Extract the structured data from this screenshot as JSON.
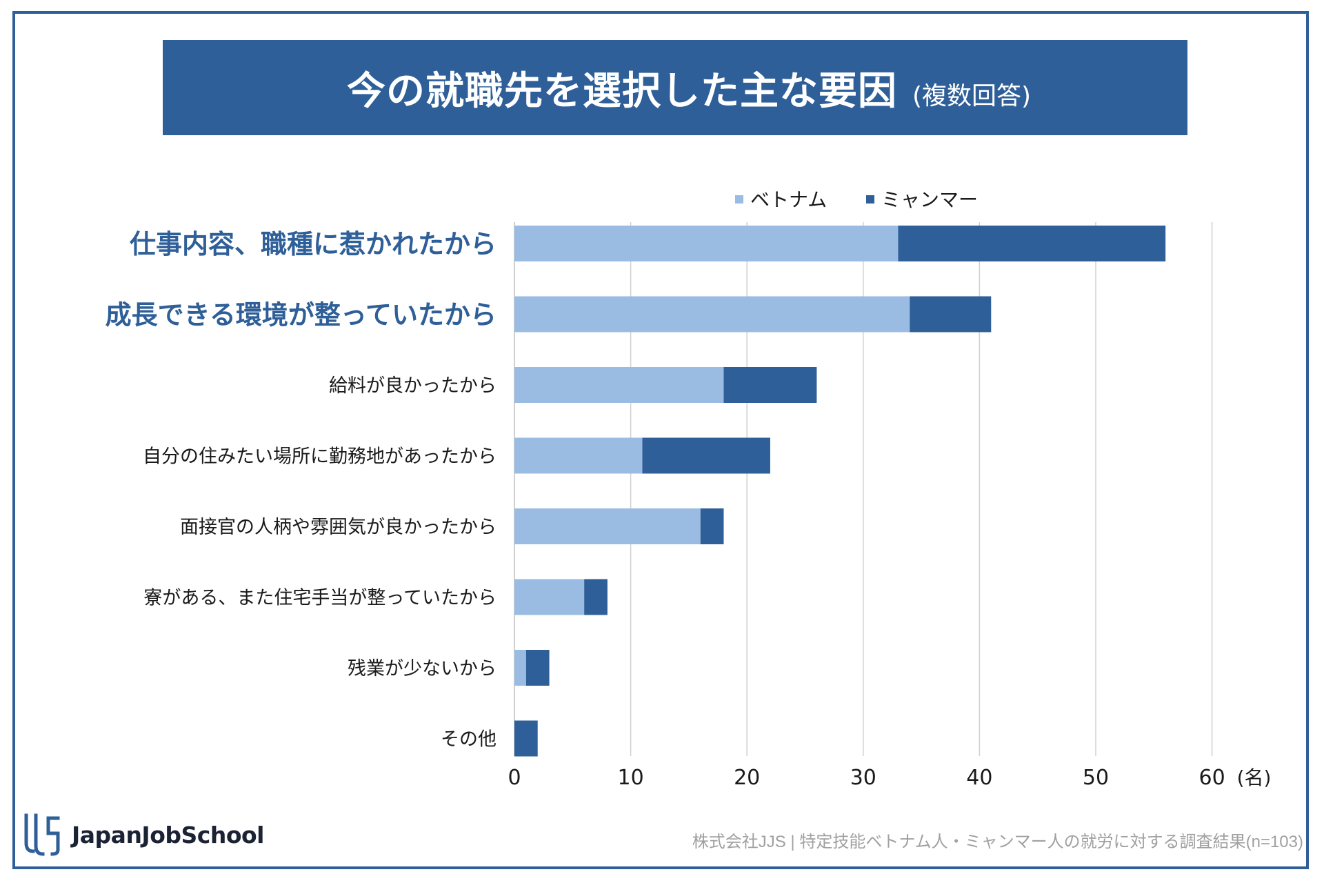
{
  "title": {
    "main": "今の就職先を選択した主な要因",
    "sub": "(複数回答)"
  },
  "legend": [
    {
      "label": "ベトナム",
      "color": "#9bbce2"
    },
    {
      "label": "ミャンマー",
      "color": "#2e5f98"
    }
  ],
  "chart_data": {
    "type": "bar",
    "orientation": "horizontal",
    "stacked": true,
    "categories": [
      "仕事内容、職種に惹かれたから",
      "成長できる環境が整っていたから",
      "給料が良かったから",
      "自分の住みたい場所に勤務地があったから",
      "面接官の人柄や雰囲気が良かったから",
      "寮がある、また住宅手当が整っていたから",
      "残業が少ないから",
      "その他"
    ],
    "highlighted_categories": [
      0,
      1
    ],
    "series": [
      {
        "name": "ベトナム",
        "color": "#9bbce2",
        "values": [
          33,
          34,
          18,
          11,
          16,
          6,
          1,
          0
        ]
      },
      {
        "name": "ミャンマー",
        "color": "#2e5f98",
        "values": [
          23,
          7,
          8,
          11,
          2,
          2,
          2,
          2
        ]
      }
    ],
    "xlim": [
      0,
      60
    ],
    "xticks": [
      0,
      10,
      20,
      30,
      40,
      50,
      60
    ],
    "xunit": "(名)",
    "grid": true,
    "legend_position": "top-center"
  },
  "logo": {
    "name": "JapanJobSchool",
    "mark": "JJS"
  },
  "footer": {
    "note": "株式会社JJS | 特定技能ベトナム人・ミャンマー人の就労に対する調査結果(n=103)"
  },
  "colors": {
    "brand": "#2e5f98",
    "light": "#9bbce2"
  }
}
